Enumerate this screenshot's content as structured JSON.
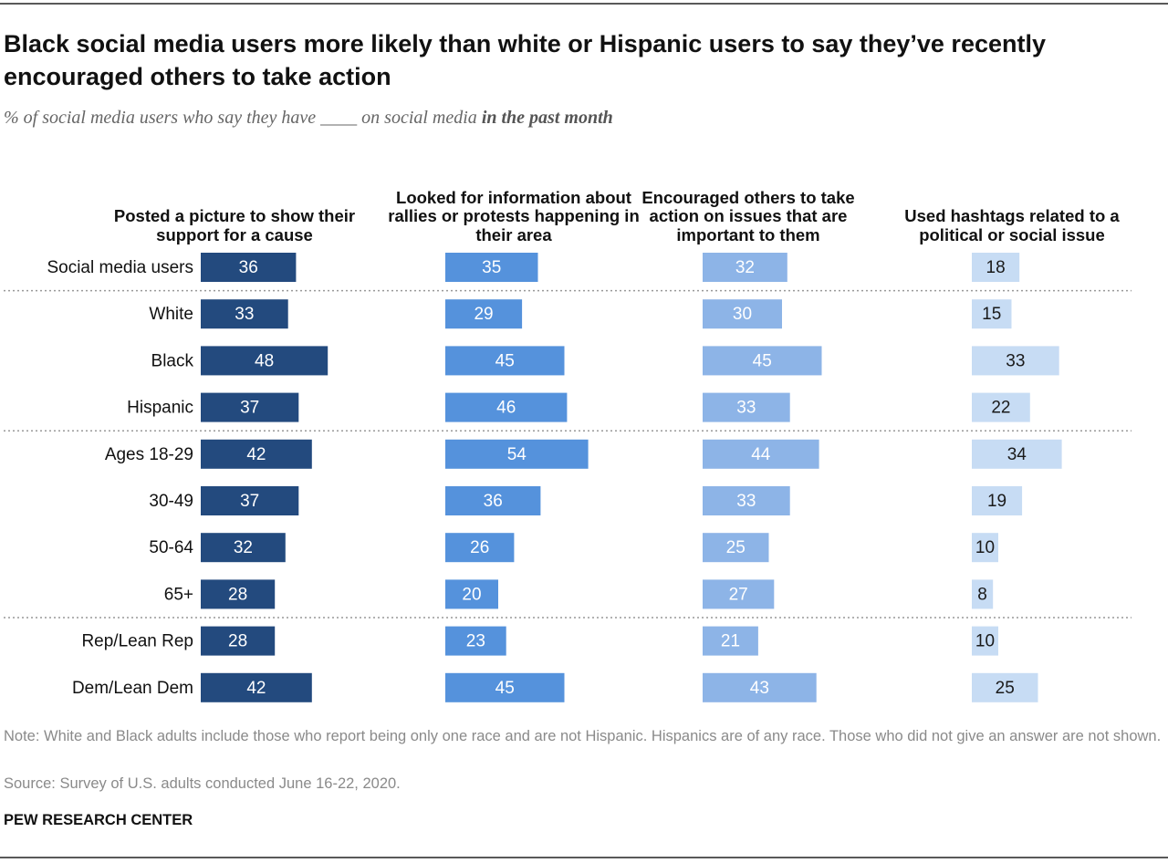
{
  "chart_data": {
    "type": "bar",
    "title": "Black social media users more likely than white or Hispanic users to say they’ve recently encouraged others to take action",
    "subtitle": "% of social media users who say they have ____ on social media",
    "subtitle_emphasis": "in the past month",
    "categories": [
      "Social media users",
      "White",
      "Black",
      "Hispanic",
      "Ages 18-29",
      "30-49",
      "50-64",
      "65+",
      "Rep/Lean Rep",
      "Dem/Lean Dem"
    ],
    "series": [
      {
        "name": "Posted a picture to show their support for a cause",
        "color": "#234a7e",
        "label_color": "#ffffff",
        "values": [
          36,
          33,
          48,
          37,
          42,
          37,
          32,
          28,
          28,
          42
        ]
      },
      {
        "name": "Looked for information about rallies or protests happening in their area",
        "color": "#5592dc",
        "label_color": "#ffffff",
        "values": [
          35,
          29,
          45,
          46,
          54,
          36,
          26,
          20,
          23,
          45
        ]
      },
      {
        "name": "Encouraged others to take action on issues that are important to them",
        "color": "#8db4e7",
        "label_color": "#ffffff",
        "values": [
          32,
          30,
          45,
          33,
          44,
          33,
          25,
          27,
          21,
          43
        ]
      },
      {
        "name": "Used hashtags related to a political or social issue",
        "color": "#c7dcf4",
        "label_color": "#1a1a1a",
        "values": [
          18,
          15,
          33,
          22,
          34,
          19,
          10,
          8,
          10,
          25
        ]
      }
    ],
    "note": "Note: White and Black adults include those who report being only one race and are not Hispanic. Hispanics are of any race. Those who did not give an answer are not shown.",
    "source": "Source: Survey of U.S. adults conducted June 16-22, 2020.",
    "footer": "PEW RESEARCH CENTER"
  }
}
